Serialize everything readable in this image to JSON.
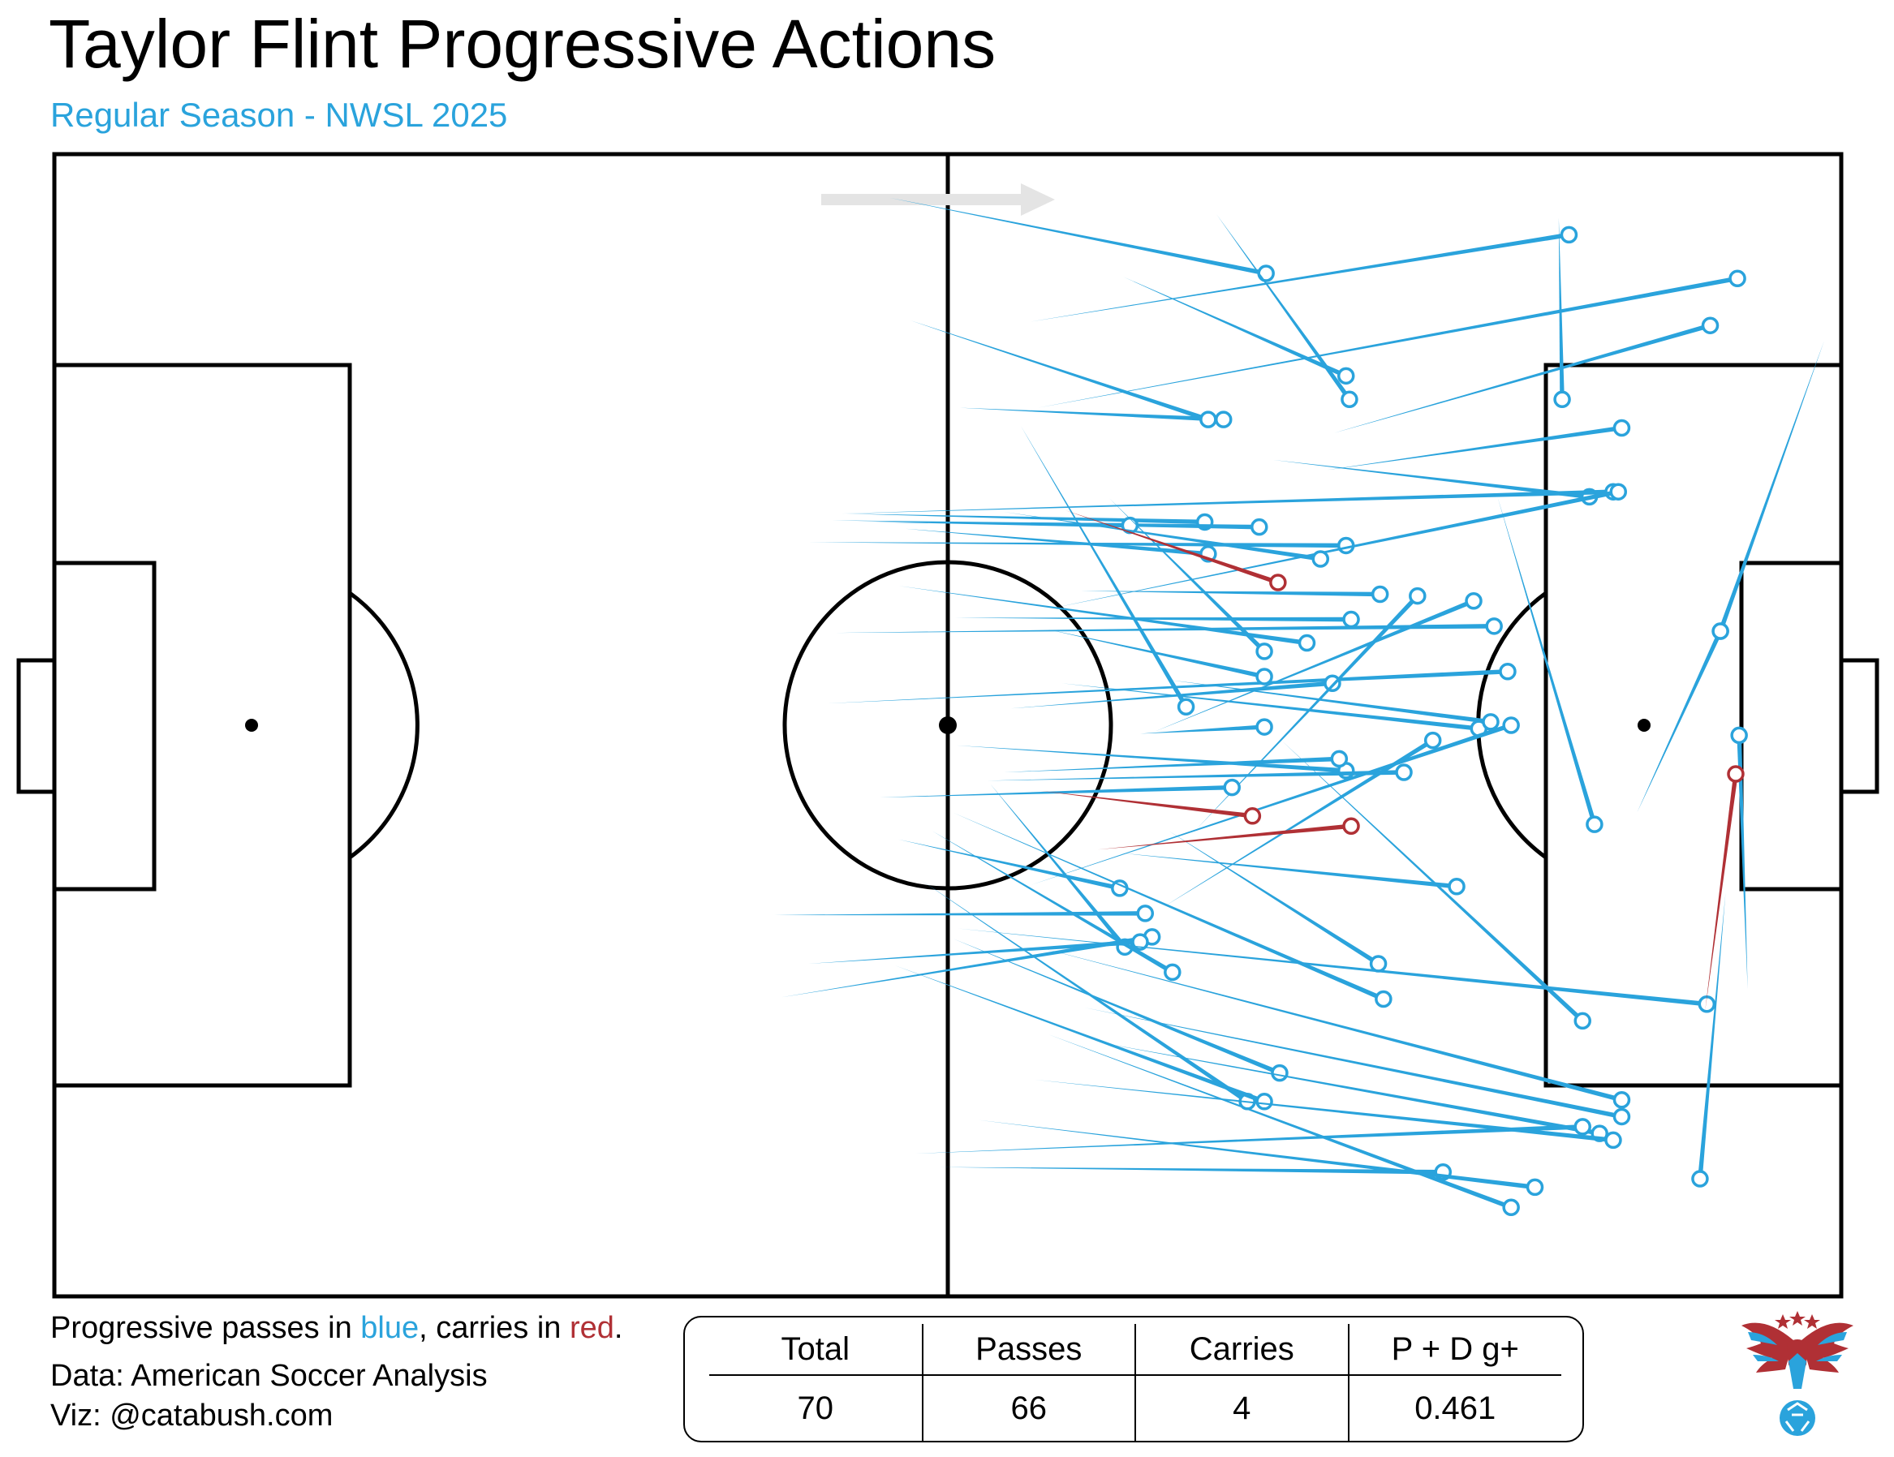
{
  "header": {
    "title": "Taylor Flint Progressive Actions",
    "subtitle": "Regular Season - NWSL 2025"
  },
  "footer": {
    "legend_prefix": "Progressive passes in ",
    "legend_blue": "blue",
    "legend_mid": ", carries in ",
    "legend_red": "red",
    "legend_suffix": ".",
    "data_credit": "Data: American Soccer Analysis",
    "viz_credit": "Viz: @catabush.com"
  },
  "stats": {
    "headers": [
      "Total",
      "Passes",
      "Carries",
      "P + D g+"
    ],
    "values": [
      "70",
      "66",
      "4",
      "0.461"
    ]
  },
  "colors": {
    "pass": "#2aa3dc",
    "carry": "#b03035",
    "direction_arrow": "#e4e4e4",
    "subtitle": "#2aa3dc"
  },
  "icons": {
    "brand_logo": "eagle-soccer-logo-icon",
    "attack_direction": "direction-arrow-icon"
  },
  "chart_data": {
    "type": "scatter",
    "pitch": {
      "length_m": 105,
      "width_m": 68,
      "attack_direction": "left-to-right"
    },
    "passes": [
      [
        49.1,
        2.6,
        71.2,
        7.1
      ],
      [
        62.8,
        7.3,
        75.9,
        13.2
      ],
      [
        57.2,
        10.0,
        89.0,
        4.8
      ],
      [
        68.3,
        3.6,
        76.1,
        14.6
      ],
      [
        53.2,
        15.1,
        68.7,
        15.8
      ],
      [
        50.3,
        9.9,
        67.8,
        15.8
      ],
      [
        57.8,
        15.1,
        98.9,
        7.4
      ],
      [
        74.8,
        18.8,
        92.1,
        16.3
      ],
      [
        75.2,
        16.6,
        97.3,
        10.2
      ],
      [
        88.4,
        3.8,
        88.6,
        14.6
      ],
      [
        71.6,
        18.2,
        90.2,
        20.4
      ],
      [
        46.5,
        21.4,
        67.6,
        21.9
      ],
      [
        45.7,
        21.8,
        70.8,
        22.2
      ],
      [
        44.3,
        23.1,
        75.9,
        23.3
      ],
      [
        48.1,
        21.9,
        63.2,
        22.1
      ],
      [
        46.2,
        21.4,
        91.6,
        20.1
      ],
      [
        58.8,
        27.0,
        91.9,
        20.1
      ],
      [
        45.9,
        28.5,
        84.6,
        28.1
      ],
      [
        45.4,
        32.7,
        85.4,
        30.8
      ],
      [
        50.0,
        22.3,
        67.8,
        23.8
      ],
      [
        52.9,
        27.6,
        76.2,
        27.7
      ],
      [
        60.3,
        26.0,
        77.9,
        26.2
      ],
      [
        55.8,
        21.3,
        74.4,
        24.1
      ],
      [
        62.0,
        20.5,
        71.1,
        29.6
      ],
      [
        84.8,
        20.4,
        90.5,
        39.9
      ],
      [
        49.6,
        25.7,
        73.6,
        29.1
      ],
      [
        56.8,
        16.2,
        66.5,
        32.9
      ],
      [
        58.4,
        28.3,
        71.1,
        31.1
      ],
      [
        64.6,
        34.4,
        83.4,
        26.6
      ],
      [
        59.2,
        31.5,
        83.7,
        34.2
      ],
      [
        65.5,
        31.3,
        84.4,
        33.8
      ],
      [
        63.8,
        34.5,
        71.1,
        34.1
      ],
      [
        56.2,
        33.0,
        75.1,
        31.5
      ],
      [
        53.0,
        35.2,
        75.9,
        36.7
      ],
      [
        54.8,
        37.3,
        79.3,
        36.8
      ],
      [
        67.1,
        40.2,
        80.1,
        26.3
      ],
      [
        57.4,
        43.5,
        85.6,
        34.0
      ],
      [
        65.2,
        44.8,
        81.0,
        34.9
      ],
      [
        49.6,
        40.8,
        62.6,
        43.7
      ],
      [
        55.0,
        37.5,
        62.9,
        47.2
      ],
      [
        62.6,
        41.6,
        82.4,
        43.6
      ],
      [
        52.8,
        39.2,
        78.1,
        50.3
      ],
      [
        65.5,
        40.3,
        77.8,
        48.2
      ],
      [
        50.9,
        43.2,
        70.1,
        56.4
      ],
      [
        42.3,
        45.3,
        64.1,
        45.2
      ],
      [
        51.6,
        40.3,
        65.7,
        48.7
      ],
      [
        42.7,
        50.2,
        64.5,
        46.6
      ],
      [
        44.3,
        48.2,
        63.8,
        46.9
      ],
      [
        52.8,
        46.7,
        72.0,
        54.7
      ],
      [
        49.4,
        48.3,
        71.1,
        56.4
      ],
      [
        53.1,
        46.1,
        97.1,
        50.6
      ],
      [
        57.8,
        47.2,
        92.1,
        56.3
      ],
      [
        61.5,
        52.9,
        90.8,
        58.3
      ],
      [
        60.5,
        50.8,
        92.1,
        57.3
      ],
      [
        57.6,
        55.1,
        91.6,
        58.7
      ],
      [
        52.0,
        60.3,
        81.6,
        60.6
      ],
      [
        54.3,
        57.5,
        87.0,
        61.5
      ],
      [
        58.4,
        52.4,
        85.6,
        62.7
      ],
      [
        50.6,
        59.5,
        89.8,
        57.9
      ],
      [
        72.1,
        34.9,
        89.8,
        51.6
      ],
      [
        104.0,
        11.1,
        97.9,
        28.4
      ],
      [
        93.0,
        39.2,
        97.9,
        28.4
      ],
      [
        99.5,
        49.7,
        99.0,
        34.6
      ],
      [
        98.2,
        44.0,
        96.7,
        61.0
      ],
      [
        55.8,
        36.8,
        75.5,
        36.0
      ],
      [
        48.5,
        38.3,
        69.2,
        37.7
      ]
    ],
    "carries": [
      [
        59.4,
        21.2,
        71.9,
        25.5
      ],
      [
        57.9,
        37.9,
        70.4,
        39.4
      ],
      [
        61.3,
        41.4,
        76.2,
        40.0
      ],
      [
        97.0,
        51.0,
        98.8,
        36.9
      ]
    ]
  }
}
